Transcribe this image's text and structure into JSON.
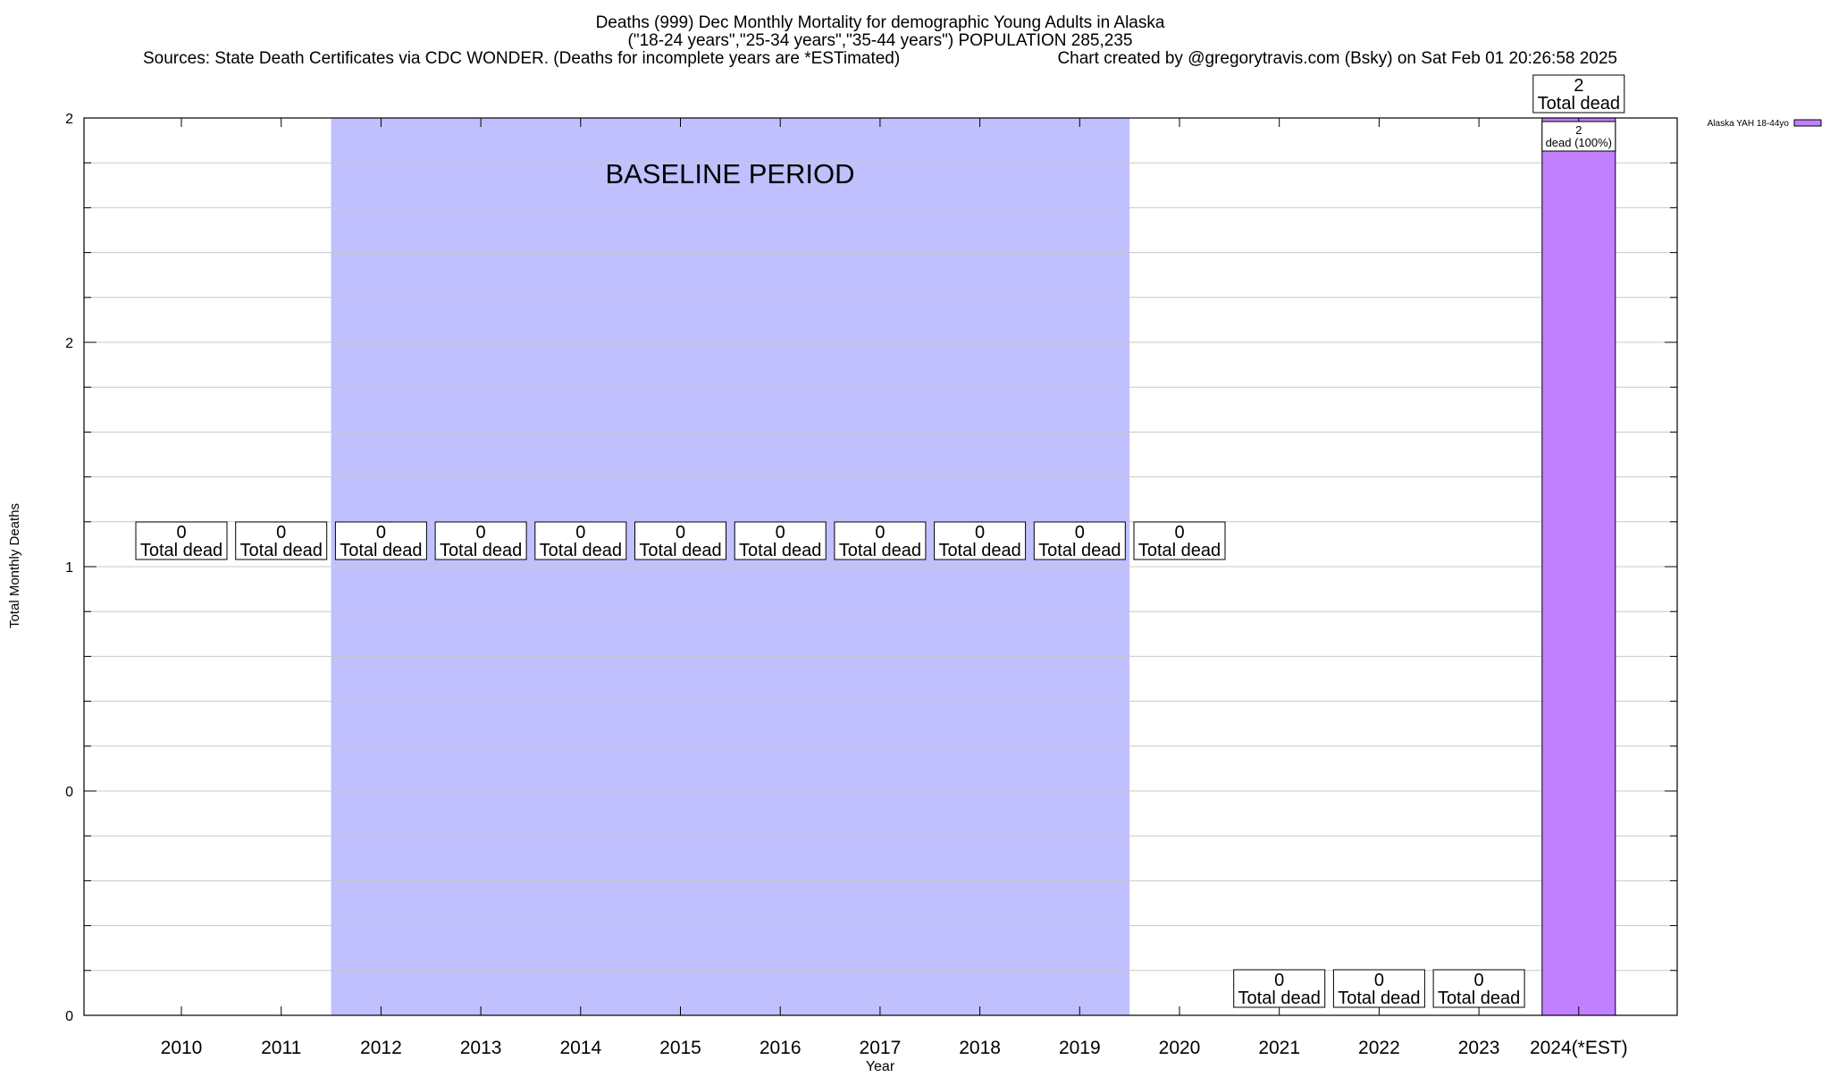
{
  "chart_data": {
    "type": "bar",
    "title_lines": [
      "Deaths (999) Dec Monthly Mortality for demographic Young Adults in Alaska",
      "(\"18-24 years\",\"25-34 years\",\"35-44 years\") POPULATION 285,235"
    ],
    "sources_note": "Sources: State Death Certificates via CDC WONDER. (Deaths for incomplete years are *ESTimated)",
    "credit_note": "Chart created by @gregorytravis.com (Bsky) on Sat Feb 01 20:26:58 2025",
    "xlabel": "Year",
    "ylabel": "Total Monthly Deaths",
    "categories": [
      "2010",
      "2011",
      "2012",
      "2013",
      "2014",
      "2015",
      "2016",
      "2017",
      "2018",
      "2019",
      "2020",
      "2021",
      "2022",
      "2023",
      "2024(*EST)"
    ],
    "series": [
      {
        "name": "Alaska YAH 18-44yo",
        "color": "#c080ff",
        "values": [
          null,
          null,
          null,
          null,
          null,
          null,
          null,
          null,
          null,
          null,
          null,
          0,
          0,
          0,
          2
        ]
      }
    ],
    "total_labels": [
      {
        "value": "0",
        "text": "Total dead"
      },
      {
        "value": "0",
        "text": "Total dead"
      },
      {
        "value": "0",
        "text": "Total dead"
      },
      {
        "value": "0",
        "text": "Total dead"
      },
      {
        "value": "0",
        "text": "Total dead"
      },
      {
        "value": "0",
        "text": "Total dead"
      },
      {
        "value": "0",
        "text": "Total dead"
      },
      {
        "value": "0",
        "text": "Total dead"
      },
      {
        "value": "0",
        "text": "Total dead"
      },
      {
        "value": "0",
        "text": "Total dead"
      },
      {
        "value": "0",
        "text": "Total dead"
      },
      {
        "value": "0",
        "text": "Total dead"
      },
      {
        "value": "0",
        "text": "Total dead"
      },
      {
        "value": "0",
        "text": "Total dead"
      },
      {
        "value": "2",
        "text": "Total dead"
      }
    ],
    "bar_inner_label": {
      "value": "2",
      "text": "dead (100%)"
    },
    "ylim": [
      0,
      2
    ],
    "y_tick_labels": [
      "0",
      "0",
      "1",
      "2",
      "2"
    ],
    "baseline_period": {
      "label": "BASELINE PERIOD",
      "from_category": "2012",
      "to_category": "2019",
      "color": "#c0c0ff"
    },
    "grid": true,
    "legend_position": "top-right"
  }
}
